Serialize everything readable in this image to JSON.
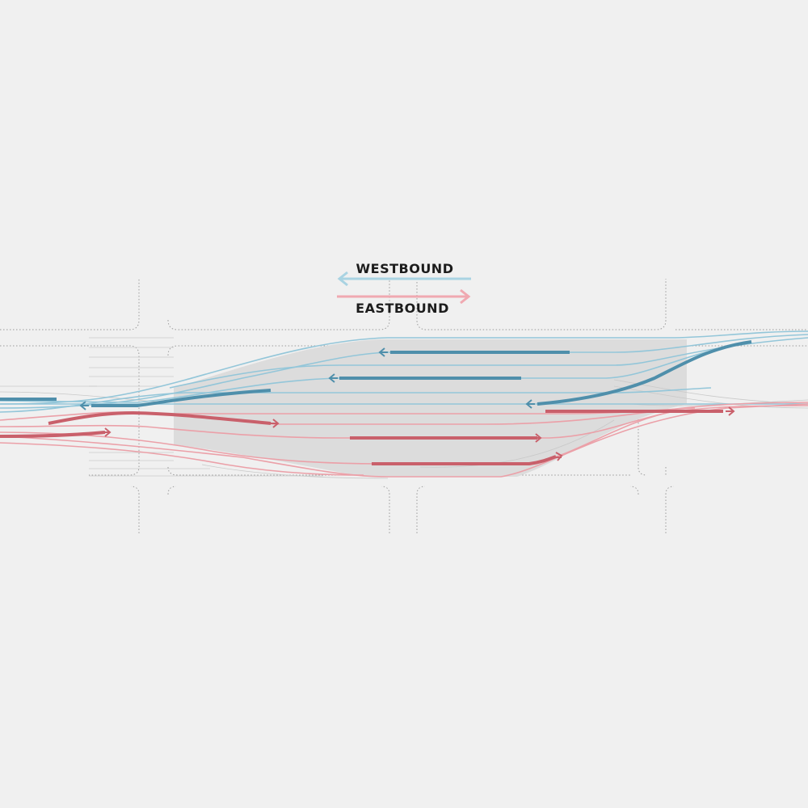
{
  "legend": {
    "westbound": "WESTBOUND",
    "eastbound": "EASTBOUND"
  }
}
